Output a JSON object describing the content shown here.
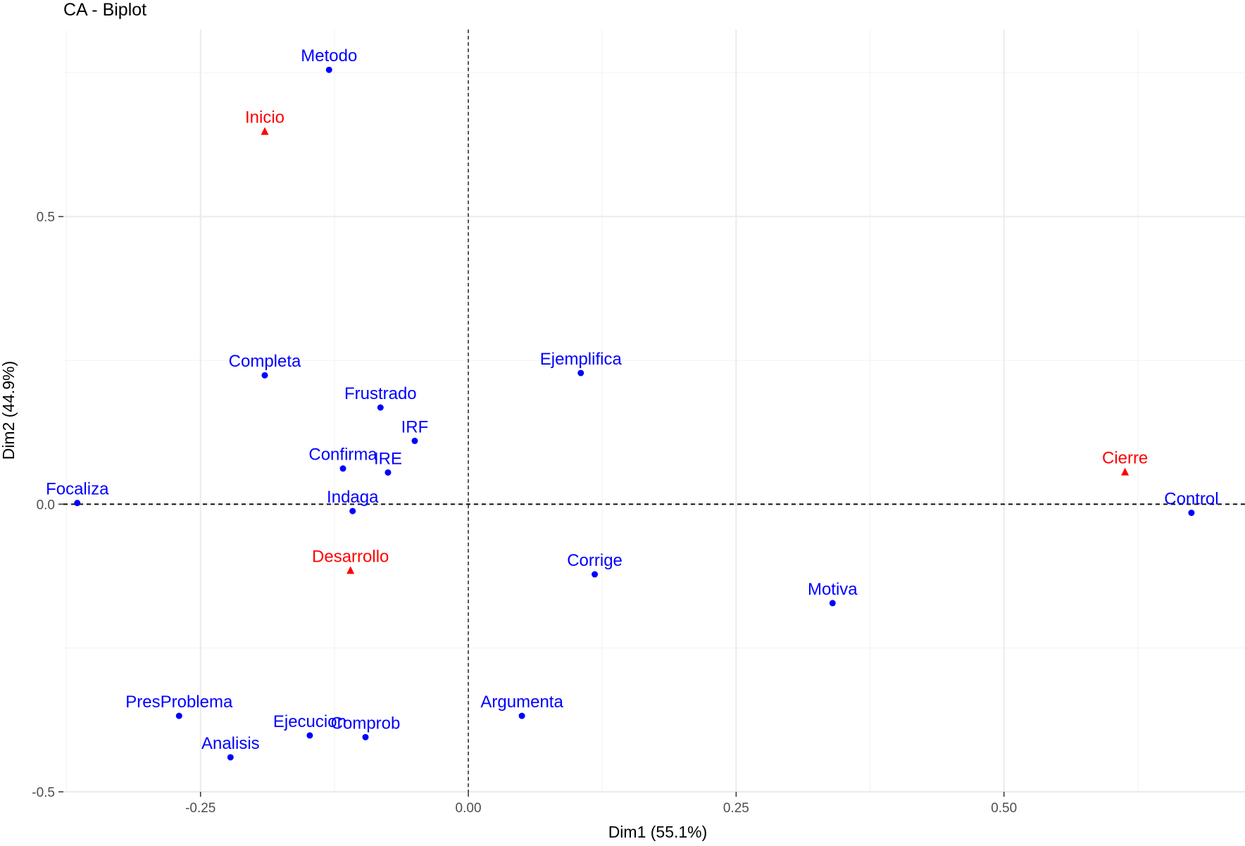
{
  "chart_data": {
    "type": "scatter",
    "title": "CA - Biplot",
    "xlabel": "Dim1 (55.1%)",
    "ylabel": "Dim2 (44.9%)",
    "xlim": [
      -0.378,
      0.725
    ],
    "ylim": [
      -0.5,
      0.825
    ],
    "x_ticks": [
      -0.25,
      0.0,
      0.25,
      0.5
    ],
    "x_tick_labels": [
      "-0.25",
      "0.00",
      "0.25",
      "0.50"
    ],
    "y_ticks": [
      -0.5,
      0.0,
      0.5
    ],
    "y_tick_labels": [
      "-0.5",
      "0.0",
      "0.5"
    ],
    "grid": true,
    "reference_lines": {
      "x": 0,
      "y": 0,
      "style": "dashed"
    },
    "colors": {
      "columns": "#0000ff",
      "rows": "#ff0000",
      "grid_major": "#ebebeb",
      "grid_minor": "#f4f4f4",
      "axis_text": "#4d4d4d"
    },
    "series": [
      {
        "marker": "circle",
        "color": "#0000ff",
        "points": [
          {
            "label": "Metodo",
            "x": -0.13,
            "y": 0.755
          },
          {
            "label": "Completa",
            "x": -0.19,
            "y": 0.224
          },
          {
            "label": "Ejemplifica",
            "x": 0.105,
            "y": 0.228
          },
          {
            "label": "Frustrado",
            "x": -0.082,
            "y": 0.168
          },
          {
            "label": "IRF",
            "x": -0.05,
            "y": 0.11
          },
          {
            "label": "Confirma",
            "x": -0.117,
            "y": 0.062
          },
          {
            "label": "IRE",
            "x": -0.075,
            "y": 0.055
          },
          {
            "label": "Focaliza",
            "x": -0.365,
            "y": 0.002
          },
          {
            "label": "Indaga",
            "x": -0.108,
            "y": -0.012
          },
          {
            "label": "Control",
            "x": 0.675,
            "y": -0.015
          },
          {
            "label": "Corrige",
            "x": 0.118,
            "y": -0.122
          },
          {
            "label": "Motiva",
            "x": 0.34,
            "y": -0.172
          },
          {
            "label": "PresProblema",
            "x": -0.27,
            "y": -0.368
          },
          {
            "label": "Argumenta",
            "x": 0.05,
            "y": -0.368
          },
          {
            "label": "Ejecucion",
            "x": -0.148,
            "y": -0.402
          },
          {
            "label": "Comprob",
            "x": -0.096,
            "y": -0.405
          },
          {
            "label": "Analisis",
            "x": -0.222,
            "y": -0.44
          }
        ]
      },
      {
        "marker": "triangle",
        "color": "#ff0000",
        "points": [
          {
            "label": "Inicio",
            "x": -0.19,
            "y": 0.648
          },
          {
            "label": "Cierre",
            "x": 0.613,
            "y": 0.056
          },
          {
            "label": "Desarrollo",
            "x": -0.11,
            "y": -0.115
          }
        ]
      }
    ]
  }
}
